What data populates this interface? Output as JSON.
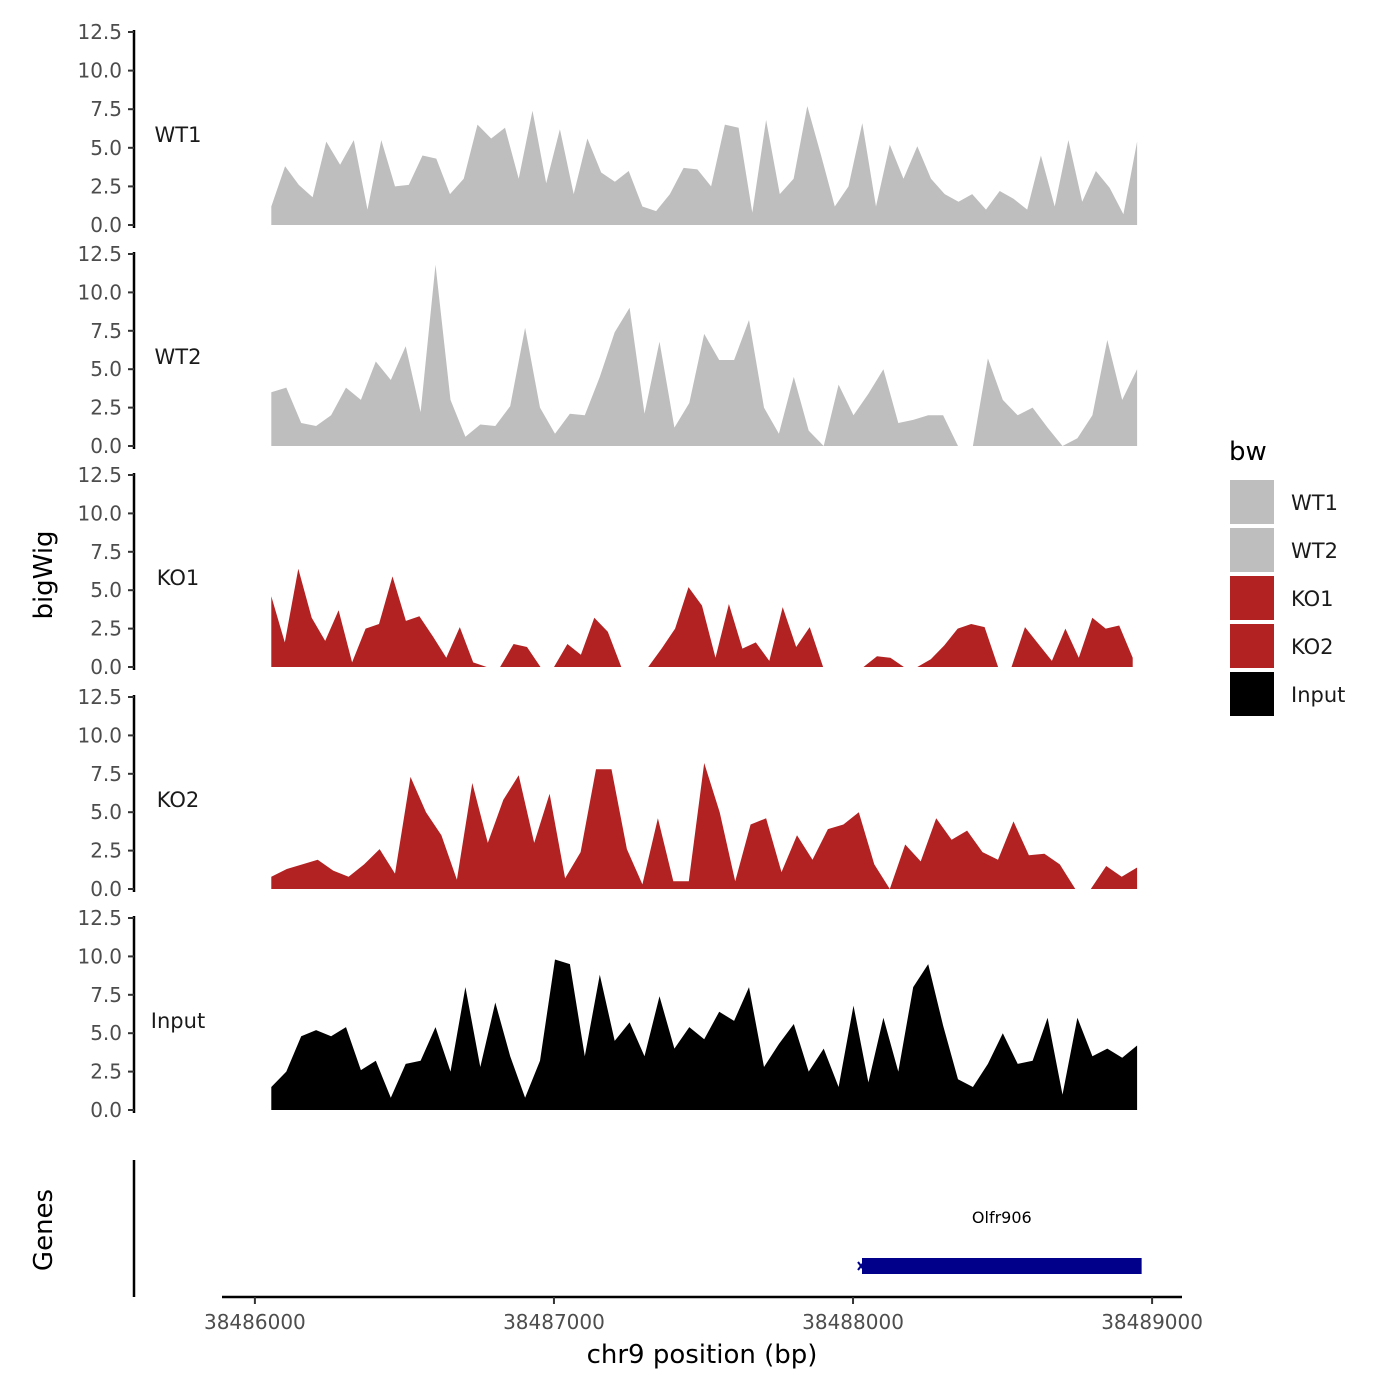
{
  "chart_data": {
    "type": "area",
    "ylabel": "bigWig",
    "xlabel": "chr9 position (bp)",
    "ylim": [
      0,
      12.5
    ],
    "yticks": [
      "0.0",
      "2.5",
      "5.0",
      "7.5",
      "10.0",
      "12.5"
    ],
    "x_range": [
      38485890,
      38489100
    ],
    "xticks": [
      "38486000",
      "38487000",
      "38488000",
      "38489000"
    ],
    "xtick_values": [
      38486000,
      38487000,
      38488000,
      38489000
    ],
    "legend": {
      "title": "bw",
      "items": [
        {
          "name": "WT1",
          "color": "#BEBEBE"
        },
        {
          "name": "WT2",
          "color": "#BEBEBE"
        },
        {
          "name": "KO1",
          "color": "#B22222"
        },
        {
          "name": "KO2",
          "color": "#B22222"
        },
        {
          "name": "Input",
          "color": "#000000"
        }
      ]
    },
    "series": [
      {
        "name": "WT1",
        "color": "#BEBEBE",
        "x_start": 38486055,
        "x_end": 38488950,
        "values": [
          1.2,
          3.8,
          2.6,
          1.8,
          5.4,
          3.9,
          5.5,
          1.0,
          5.5,
          2.5,
          2.6,
          4.5,
          4.3,
          2.0,
          3.0,
          6.5,
          5.6,
          6.3,
          3.0,
          7.4,
          2.7,
          6.2,
          2.0,
          5.6,
          3.4,
          2.8,
          3.5,
          1.2,
          0.9,
          2.0,
          3.7,
          3.6,
          2.5,
          6.5,
          6.3,
          0.8,
          6.8,
          2.0,
          3.0,
          7.7,
          4.5,
          1.2,
          2.5,
          6.6,
          1.2,
          5.2,
          3.0,
          5.1,
          3.0,
          2.0,
          1.5,
          2.0,
          1.0,
          2.2,
          1.7,
          1.0,
          4.5,
          1.2,
          5.5,
          1.5,
          3.5,
          2.4,
          0.7,
          5.4
        ]
      },
      {
        "name": "WT2",
        "color": "#BEBEBE",
        "x_start": 38486055,
        "x_end": 38488950,
        "values": [
          3.5,
          3.8,
          1.5,
          1.3,
          2.0,
          3.8,
          3.0,
          5.5,
          4.3,
          6.5,
          2.2,
          11.8,
          3.0,
          0.6,
          1.4,
          1.3,
          2.6,
          7.7,
          2.5,
          0.8,
          2.1,
          2.0,
          4.5,
          7.4,
          9.0,
          2.1,
          6.8,
          1.2,
          2.8,
          7.3,
          5.6,
          5.6,
          8.2,
          2.5,
          0.8,
          4.5,
          1.0,
          0.0,
          4.0,
          2.0,
          3.4,
          5.0,
          1.5,
          1.7,
          2.0,
          2.0,
          0.0,
          0.0,
          5.7,
          3.0,
          2.0,
          2.5,
          1.2,
          0.0,
          0.5,
          2.0,
          6.9,
          3.0,
          5.0
        ]
      },
      {
        "name": "KO1",
        "color": "#B22222",
        "x_start": 38486055,
        "x_end": 38488935,
        "values": [
          4.6,
          1.6,
          6.4,
          3.2,
          1.7,
          3.7,
          0.3,
          2.5,
          2.8,
          5.9,
          3.0,
          3.3,
          2.0,
          0.6,
          2.6,
          0.3,
          0.0,
          0.0,
          1.5,
          1.3,
          0.0,
          0.0,
          1.5,
          0.8,
          3.2,
          2.3,
          0.0,
          0.0,
          0.0,
          1.2,
          2.5,
          5.2,
          4.0,
          0.6,
          4.1,
          1.2,
          1.6,
          0.4,
          3.9,
          1.3,
          2.6,
          0.0,
          0.0,
          0.0,
          0.0,
          0.7,
          0.6,
          0.0,
          0.0,
          0.5,
          1.4,
          2.5,
          2.8,
          2.6,
          0.0,
          0.0,
          2.6,
          1.5,
          0.4,
          2.5,
          0.6,
          3.2,
          2.5,
          2.7,
          0.6
        ]
      },
      {
        "name": "KO2",
        "color": "#B22222",
        "x_start": 38486055,
        "x_end": 38488950,
        "values": [
          0.8,
          1.3,
          1.6,
          1.9,
          1.2,
          0.8,
          1.6,
          2.6,
          1.0,
          7.3,
          5.0,
          3.5,
          0.6,
          6.9,
          3.0,
          5.8,
          7.4,
          3.0,
          6.2,
          0.7,
          2.4,
          7.8,
          7.8,
          2.6,
          0.3,
          4.6,
          0.5,
          0.5,
          8.2,
          5.0,
          0.5,
          4.2,
          4.6,
          1.1,
          3.5,
          1.9,
          3.9,
          4.2,
          5.0,
          1.6,
          0.0,
          2.9,
          1.8,
          4.6,
          3.2,
          3.8,
          2.4,
          1.9,
          4.4,
          2.2,
          2.3,
          1.6,
          0.0,
          0.0,
          1.5,
          0.8,
          1.4
        ]
      },
      {
        "name": "Input",
        "color": "#000000",
        "x_start": 38486055,
        "x_end": 38488950,
        "values": [
          1.5,
          2.5,
          4.8,
          5.2,
          4.8,
          5.4,
          2.6,
          3.2,
          0.8,
          3.0,
          3.2,
          5.4,
          2.5,
          8.0,
          2.8,
          7.0,
          3.5,
          0.8,
          3.2,
          9.8,
          9.5,
          3.5,
          8.8,
          4.5,
          5.7,
          3.5,
          7.4,
          4.0,
          5.4,
          4.6,
          6.4,
          5.8,
          8.0,
          2.8,
          4.3,
          5.6,
          2.5,
          4.0,
          1.5,
          6.8,
          1.8,
          6.0,
          2.5,
          8.0,
          9.5,
          5.5,
          2.0,
          1.5,
          3.0,
          5.0,
          3.0,
          3.2,
          6.0,
          1.0,
          6.0,
          3.5,
          4.0,
          3.4,
          4.2
        ]
      }
    ],
    "gene_track": {
      "ylabel": "Genes",
      "genes": [
        {
          "name": "Olfr906",
          "start": 38488030,
          "end": 38488965,
          "strand": "-",
          "color": "#00008B"
        }
      ]
    }
  }
}
